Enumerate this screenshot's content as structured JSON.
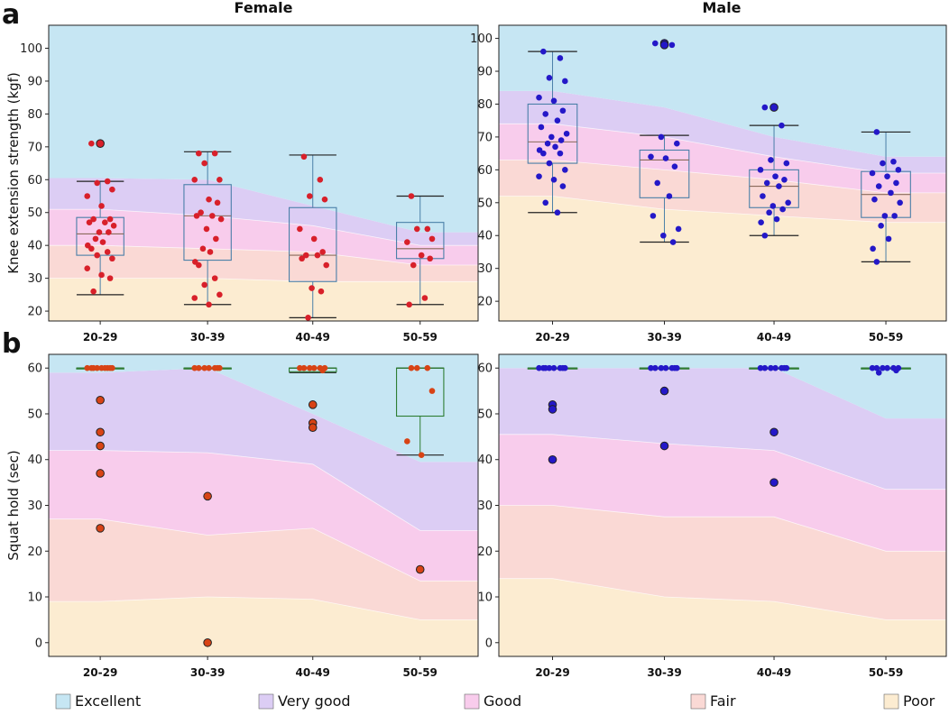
{
  "figure": {
    "panel_letters": [
      "a",
      "b"
    ],
    "column_titles": [
      "Female",
      "Male"
    ],
    "legend": [
      {
        "label": "Excellent",
        "color": "#c6e6f3"
      },
      {
        "label": "Very good",
        "color": "#dccdf4"
      },
      {
        "label": "Good",
        "color": "#f8ccec"
      },
      {
        "label": "Fair",
        "color": "#fad9d5"
      },
      {
        "label": "Poor",
        "color": "#fcecd1"
      }
    ]
  },
  "chart_data": [
    {
      "id": "a-female",
      "type": "box",
      "title": "Female",
      "ylabel": "Knee extension strength (kgf)",
      "ylim": [
        17,
        107
      ],
      "yticks": [
        20,
        30,
        40,
        50,
        60,
        70,
        80,
        90,
        100
      ],
      "categories": [
        "20-29",
        "30-39",
        "40-49",
        "50-59"
      ],
      "band_tops": [
        [
          30,
          30,
          29,
          29
        ],
        [
          40,
          39,
          38,
          34
        ],
        [
          51,
          49,
          46,
          40
        ],
        [
          60.5,
          60,
          52,
          44
        ],
        [
          107,
          107,
          107,
          107
        ]
      ],
      "box_color": "#4a7fa8",
      "median_color": "#8a6a5a",
      "boxes": [
        {
          "whisker_low": 25,
          "q1": 37,
          "median": 43.5,
          "q3": 48.5,
          "whisker_high": 59.5
        },
        {
          "whisker_low": 22,
          "q1": 35.5,
          "median": 49,
          "q3": 58.5,
          "whisker_high": 68.5
        },
        {
          "whisker_low": 18,
          "q1": 29,
          "median": 37,
          "q3": 51.5,
          "whisker_high": 67.5
        },
        {
          "whisker_low": 22,
          "q1": 36,
          "median": 39,
          "q3": 47,
          "whisker_high": 55
        }
      ],
      "point_color": "#d8202a",
      "points": [
        [
          71,
          59.5,
          59,
          57,
          55,
          52,
          48,
          48,
          47,
          47,
          46,
          44,
          44,
          42,
          41,
          40,
          39,
          38,
          37,
          36,
          33,
          31,
          30,
          26
        ],
        [
          68,
          68,
          65,
          60,
          60,
          54,
          53,
          50,
          49,
          49,
          48,
          45,
          42,
          39,
          38,
          35,
          34,
          30,
          28,
          25,
          24,
          22
        ],
        [
          67,
          60,
          55,
          54,
          45,
          42,
          38,
          37,
          37,
          36,
          34,
          27,
          26,
          18
        ],
        [
          55,
          45,
          45,
          42,
          41,
          37,
          36,
          34,
          24,
          22
        ]
      ],
      "outliers": [
        [
          71
        ],
        [],
        [],
        []
      ]
    },
    {
      "id": "a-male",
      "type": "box",
      "title": "Male",
      "ylabel": "",
      "ylim": [
        14,
        104
      ],
      "yticks": [
        20,
        30,
        40,
        50,
        60,
        70,
        80,
        90,
        100
      ],
      "categories": [
        "20-29",
        "30-39",
        "40-49",
        "50-59"
      ],
      "band_tops": [
        [
          52,
          48,
          46,
          44
        ],
        [
          63,
          60,
          57,
          53
        ],
        [
          74,
          70,
          64,
          59
        ],
        [
          84,
          79,
          70,
          64
        ],
        [
          104,
          104,
          104,
          104
        ]
      ],
      "box_color": "#4a7fa8",
      "median_color": "#8a6a5a",
      "boxes": [
        {
          "whisker_low": 47,
          "q1": 62,
          "median": 68.5,
          "q3": 80,
          "whisker_high": 96
        },
        {
          "whisker_low": 38,
          "q1": 51.5,
          "median": 63,
          "q3": 66,
          "whisker_high": 70.5
        },
        {
          "whisker_low": 40,
          "q1": 48.5,
          "median": 55,
          "q3": 60,
          "whisker_high": 73.5
        },
        {
          "whisker_low": 32,
          "q1": 45.5,
          "median": 52.5,
          "q3": 59.5,
          "whisker_high": 71.5
        }
      ],
      "point_color": "#2418c8",
      "points": [
        [
          96,
          94,
          88,
          87,
          82,
          81,
          78,
          77,
          75,
          73,
          71,
          70,
          69,
          68,
          67,
          66,
          65,
          65,
          62,
          60,
          58,
          57,
          55,
          50,
          47
        ],
        [
          98.5,
          98,
          70,
          68,
          64,
          63.5,
          61,
          56,
          52,
          46,
          42,
          40,
          38
        ],
        [
          79,
          73.5,
          63,
          62,
          60,
          58,
          57,
          56,
          55,
          52,
          50,
          49,
          48,
          47,
          45,
          44,
          40
        ],
        [
          71.5,
          62.5,
          62,
          60,
          59,
          58,
          56,
          55,
          53,
          51,
          50,
          46,
          46,
          43,
          39,
          36,
          32
        ]
      ],
      "outliers": [
        [],
        [
          98.5,
          98
        ],
        [
          79
        ],
        []
      ]
    },
    {
      "id": "b-female",
      "type": "box",
      "title": "",
      "ylabel": "Squat hold (sec)",
      "ylim": [
        -3,
        63
      ],
      "yticks": [
        0,
        10,
        20,
        30,
        40,
        50,
        60
      ],
      "categories": [
        "20-29",
        "30-39",
        "40-49",
        "50-59"
      ],
      "band_tops": [
        [
          9,
          10,
          9.5,
          5
        ],
        [
          27,
          23.5,
          25,
          13.5
        ],
        [
          42,
          41.5,
          39,
          24.5
        ],
        [
          59,
          60,
          50,
          39.5
        ],
        [
          63,
          63,
          63,
          63
        ]
      ],
      "box_color": "#2e7d32",
      "median_color": "#2e7d32",
      "boxes": [
        {
          "whisker_low": 60,
          "q1": 60,
          "median": 60,
          "q3": 60,
          "whisker_high": 60
        },
        {
          "whisker_low": 60,
          "q1": 60,
          "median": 60,
          "q3": 60,
          "whisker_high": 60
        },
        {
          "whisker_low": 59,
          "q1": 59.2,
          "median": 60,
          "q3": 60,
          "whisker_high": 60
        },
        {
          "whisker_low": 41,
          "q1": 49.5,
          "median": 60,
          "q3": 60,
          "whisker_high": 60
        }
      ],
      "point_color": "#d84315",
      "points": [
        [
          60,
          60,
          60,
          60,
          60,
          60,
          60,
          60,
          60
        ],
        [
          60,
          60,
          60,
          60,
          60,
          60,
          60
        ],
        [
          60,
          60,
          60,
          60,
          60,
          60,
          59.5
        ],
        [
          60,
          60,
          60,
          55,
          44,
          41
        ]
      ],
      "outliers": [
        [
          53,
          46,
          43,
          37,
          25
        ],
        [
          32,
          0
        ],
        [
          52,
          48,
          47
        ],
        [
          16
        ]
      ]
    },
    {
      "id": "b-male",
      "type": "box",
      "title": "",
      "ylabel": "",
      "ylim": [
        -3,
        63
      ],
      "yticks": [
        0,
        10,
        20,
        30,
        40,
        50,
        60
      ],
      "categories": [
        "20-29",
        "30-39",
        "40-49",
        "50-59"
      ],
      "band_tops": [
        [
          14,
          10,
          9,
          5
        ],
        [
          30,
          27.5,
          27.5,
          20
        ],
        [
          45.5,
          43.5,
          42,
          33.5
        ],
        [
          60,
          60,
          60,
          49
        ],
        [
          63,
          63,
          63,
          63
        ]
      ],
      "box_color": "#2e7d32",
      "median_color": "#2e7d32",
      "boxes": [
        {
          "whisker_low": 60,
          "q1": 60,
          "median": 60,
          "q3": 60,
          "whisker_high": 60
        },
        {
          "whisker_low": 60,
          "q1": 60,
          "median": 60,
          "q3": 60,
          "whisker_high": 60
        },
        {
          "whisker_low": 60,
          "q1": 60,
          "median": 60,
          "q3": 60,
          "whisker_high": 60
        },
        {
          "whisker_low": 60,
          "q1": 60,
          "median": 60,
          "q3": 60,
          "whisker_high": 60
        }
      ],
      "point_color": "#2418c8",
      "points": [
        [
          60,
          60,
          60,
          60,
          60,
          60,
          60,
          60
        ],
        [
          60,
          60,
          60,
          60,
          60,
          60,
          60
        ],
        [
          60,
          60,
          60,
          60,
          60,
          60,
          60
        ],
        [
          60,
          60,
          60,
          60,
          60,
          60,
          59.5,
          59
        ]
      ],
      "outliers": [
        [
          52,
          51,
          40
        ],
        [
          55,
          43
        ],
        [
          46,
          35
        ],
        []
      ]
    }
  ]
}
